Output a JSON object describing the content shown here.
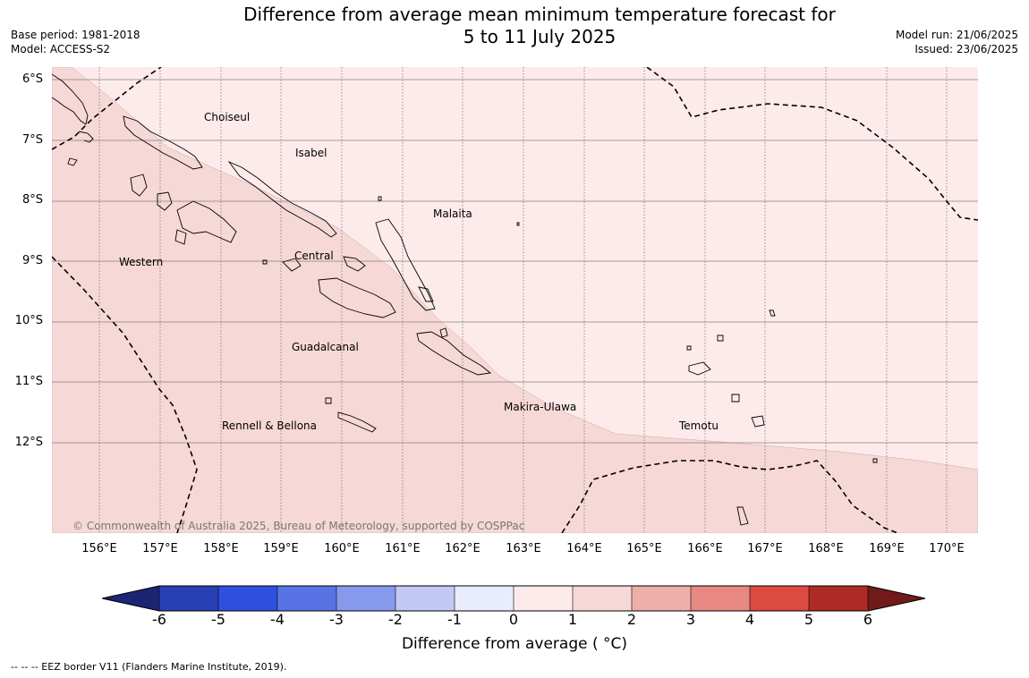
{
  "title": {
    "line1": "Difference from average mean minimum temperature forecast for",
    "line2": "5 to 11 July 2025"
  },
  "meta_left": {
    "base_period": "Base period: 1981-2018",
    "model": "Model: ACCESS-S2"
  },
  "meta_right": {
    "model_run": "Model run: 21/06/2025",
    "issued": "Issued: 23/06/2025"
  },
  "map": {
    "latitude_labels": [
      "6°S",
      "7°S",
      "8°S",
      "9°S",
      "10°S",
      "11°S",
      "12°S"
    ],
    "longitude_labels": [
      "156°E",
      "157°E",
      "158°E",
      "159°E",
      "160°E",
      "161°E",
      "162°E",
      "163°E",
      "164°E",
      "165°E",
      "166°E",
      "167°E",
      "168°E",
      "169°E",
      "170°E"
    ],
    "province_labels": {
      "choiseul": "Choiseul",
      "isabel": "Isabel",
      "malaita": "Malaita",
      "western": "Western",
      "central": "Central",
      "guadalcanal": "Guadalcanal",
      "makira_ulawa": "Makira-Ulawa",
      "temotu": "Temotu",
      "rennell_bellona": "Rennell & Bellona"
    },
    "copyright": "© Commonwealth of Australia 2025, Bureau of Meteorology, supported by COSPPac",
    "anomaly_regions": {
      "northeast": "0 to 1",
      "southwest": "1 to 2"
    },
    "colors": {
      "0_to_1": "#fcebea",
      "1_to_2": "#f6d8d6"
    }
  },
  "colorbar": {
    "title": "Difference from average ( °C)",
    "ticks": [
      "-6",
      "-5",
      "-4",
      "-3",
      "-2",
      "-1",
      "0",
      "1",
      "2",
      "3",
      "4",
      "5",
      "6"
    ],
    "colors": {
      "below_-6": "#1c2474",
      "-6_to_-5": "#2740b4",
      "-5_to_-4": "#2f50de",
      "-4_to_-3": "#5874e4",
      "-3_to_-2": "#8699ec",
      "-2_to_-1": "#c1c9f4",
      "-1_to_0": "#e8ecfc",
      "0_to_1": "#fcebea",
      "1_to_2": "#f6d8d6",
      "2_to_3": "#eeaeaa",
      "3_to_4": "#e88882",
      "4_to_5": "#dc4a40",
      "5_to_6": "#ae2a26",
      "above_6": "#721a1a"
    }
  },
  "footnote": "--  --  -- EEZ border V11 (Flanders Marine Institute, 2019)."
}
